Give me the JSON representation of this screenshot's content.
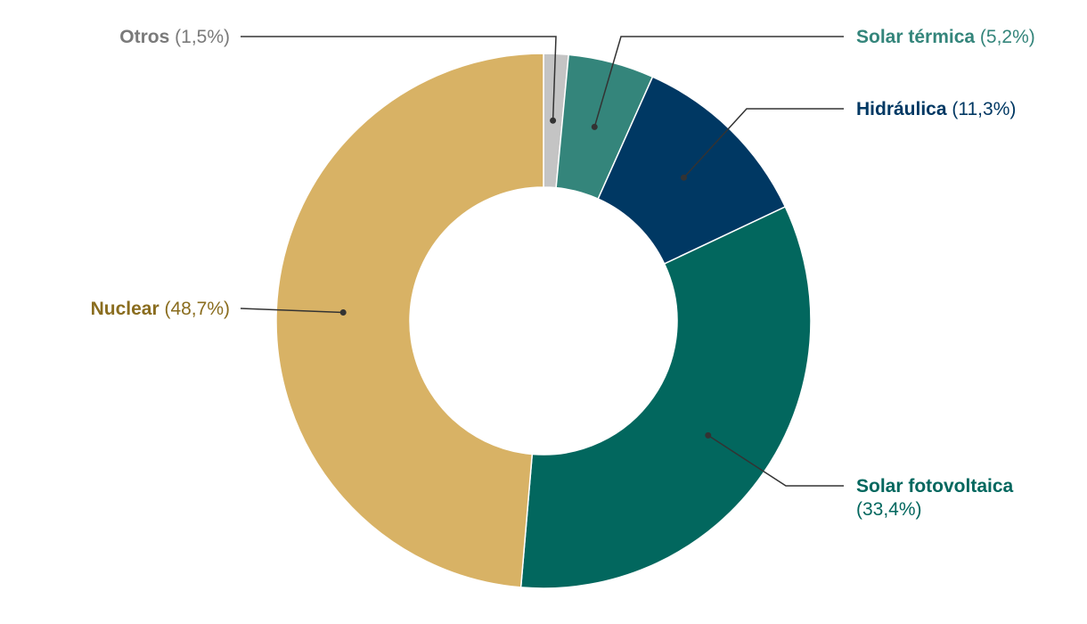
{
  "chart_data": {
    "type": "pie",
    "variant": "donut",
    "title": "",
    "slices": [
      {
        "label": "Otros",
        "value": 1.5,
        "display": "(1,5%)",
        "color": "#c4c4c4",
        "label_color": "#7a7a7a"
      },
      {
        "label": "Solar térmica",
        "value": 5.2,
        "display": "(5,2%)",
        "color": "#34857b",
        "label_color": "#34857b"
      },
      {
        "label": "Hidráulica",
        "value": 11.3,
        "display": "(11,3%)",
        "color": "#003863",
        "label_color": "#003863"
      },
      {
        "label": "Solar fotovoltaica",
        "value": 33.4,
        "display": "(33,4%)",
        "color": "#02675e",
        "label_color": "#02675e"
      },
      {
        "label": "Nuclear",
        "value": 48.7,
        "display": "(48,7%)",
        "color": "#d8b265",
        "label_color": "#8a6d1f"
      }
    ]
  }
}
